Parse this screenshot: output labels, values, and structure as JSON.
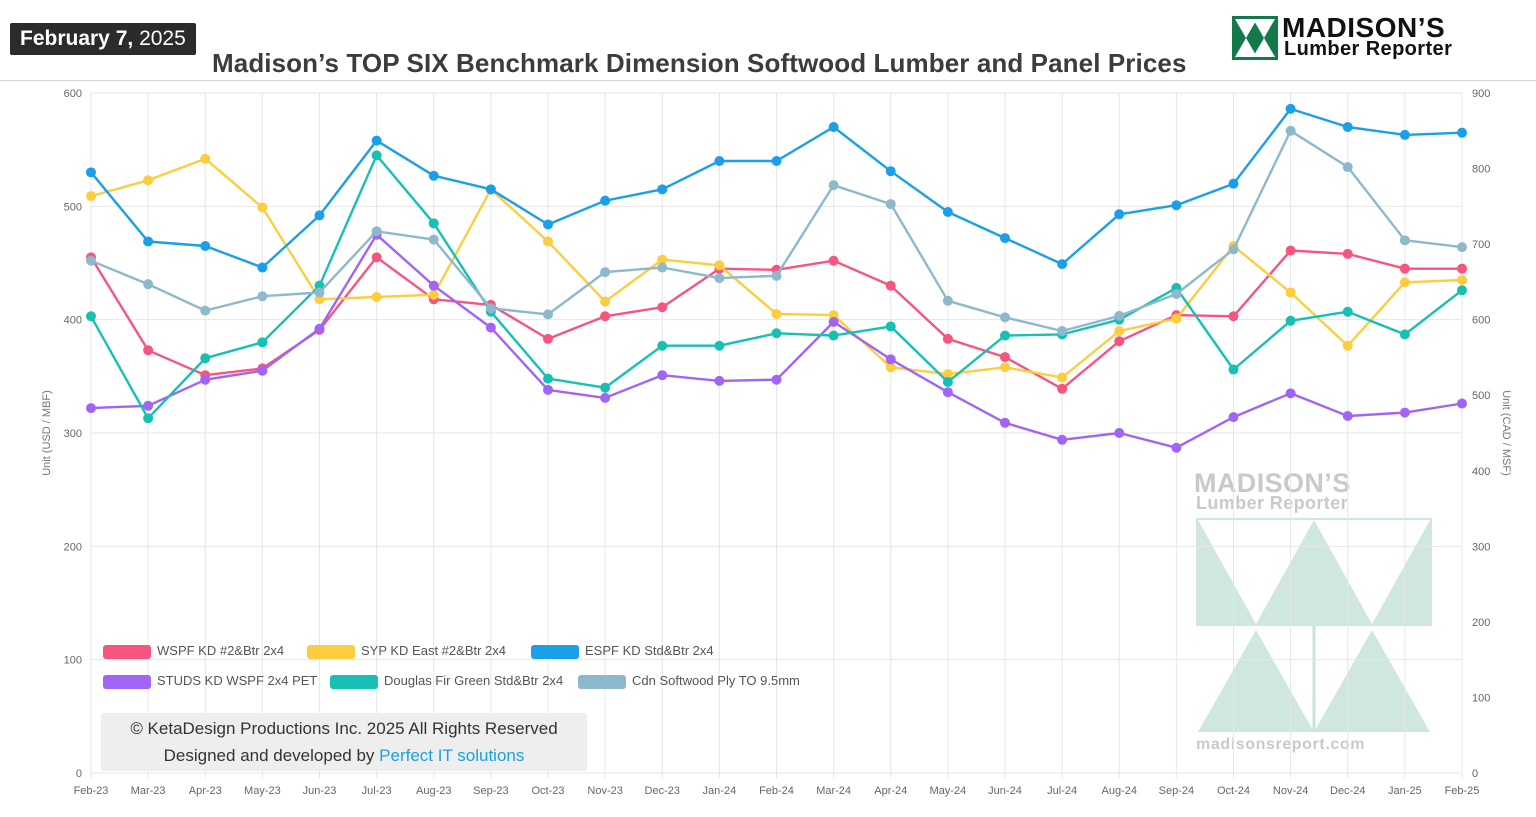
{
  "header": {
    "date_month_day": "February 7,",
    "date_year": "2025",
    "title": "Madison’s TOP SIX Benchmark Dimension Softwood Lumber and Panel Prices",
    "logo_line1": "MADISON’S",
    "logo_line2": "Lumber Reporter"
  },
  "footer": {
    "copyright": "© KetaDesign Productions Inc. 2025 All Rights Reserved",
    "designed_by": "Designed and developed by",
    "designer_link": "Perfect IT solutions"
  },
  "watermark": {
    "line1": "MADISON’S",
    "line2": "Lumber Reporter",
    "url": "madisonsreport.com"
  },
  "colors": {
    "wspf": "#f65580",
    "syp": "#fdcd40",
    "espf": "#1a9fe8",
    "studs": "#a164f5",
    "dfir": "#16c0b3",
    "ply": "#8eb8cc",
    "watermark_green": "#c8e3dc"
  },
  "chart_data": {
    "type": "line",
    "xlabel": "",
    "ylabel": "Unit (USD / MBF)",
    "y2label": "Unit (CAD / MSF)",
    "ylim": [
      0,
      600
    ],
    "y2lim": [
      0,
      900
    ],
    "yticks": [
      "0",
      "100",
      "200",
      "300",
      "400",
      "500",
      "600"
    ],
    "y2ticks": [
      "0",
      "100",
      "200",
      "300",
      "400",
      "500",
      "600",
      "700",
      "800",
      "900"
    ],
    "grid": true,
    "legend_position": "bottom-left",
    "categories": [
      "Feb-23",
      "Mar-23",
      "Apr-23",
      "May-23",
      "Jun-23",
      "Jul-23",
      "Aug-23",
      "Sep-23",
      "Oct-23",
      "Nov-23",
      "Dec-23",
      "Jan-24",
      "Feb-24",
      "Mar-24",
      "Apr-24",
      "May-24",
      "Jun-24",
      "Jul-24",
      "Aug-24",
      "Sep-24",
      "Oct-24",
      "Nov-24",
      "Dec-24",
      "Jan-25",
      "Feb-25"
    ],
    "series": [
      {
        "name": "WSPF KD #2&Btr 2x4",
        "color_key": "wspf",
        "axis": "left",
        "values": [
          455,
          373,
          351,
          357,
          391,
          455,
          418,
          413,
          383,
          403,
          411,
          445,
          444,
          452,
          430,
          383,
          367,
          339,
          381,
          404,
          403,
          461,
          458,
          445,
          445
        ]
      },
      {
        "name": "SYP KD East #2&Btr 2x4",
        "color_key": "syp",
        "axis": "left",
        "values": [
          509,
          523,
          542,
          499,
          418,
          420,
          422,
          515,
          469,
          416,
          453,
          448,
          405,
          404,
          358,
          352,
          358,
          349,
          390,
          401,
          465,
          424,
          377,
          433,
          435
        ]
      },
      {
        "name": "ESPF KD Std&Btr 2x4",
        "color_key": "espf",
        "axis": "left",
        "values": [
          530,
          469,
          465,
          446,
          492,
          558,
          527,
          515,
          484,
          505,
          515,
          540,
          540,
          570,
          531,
          495,
          472,
          449,
          493,
          501,
          520,
          586,
          570,
          563,
          565
        ]
      },
      {
        "name": "STUDS KD WSPF 2x4 PET",
        "color_key": "studs",
        "axis": "left",
        "values": [
          322,
          324,
          347,
          355,
          392,
          475,
          430,
          393,
          338,
          331,
          351,
          346,
          347,
          398,
          365,
          336,
          309,
          294,
          300,
          287,
          314,
          335,
          315,
          318,
          326
        ]
      },
      {
        "name": "Douglas Fir Green Std&Btr 2x4",
        "color_key": "dfir",
        "axis": "left",
        "values": [
          403,
          313,
          366,
          380,
          430,
          545,
          485,
          407,
          348,
          340,
          377,
          377,
          388,
          386,
          394,
          345,
          386,
          387,
          400,
          428,
          356,
          399,
          407,
          387,
          426
        ]
      },
      {
        "name": "Cdn Softwood Ply TO 9.5mm",
        "color_key": "ply",
        "axis": "right",
        "values": [
          678,
          647,
          612,
          631,
          636,
          717,
          706,
          615,
          607,
          663,
          669,
          655,
          658,
          778,
          753,
          625,
          603,
          585,
          605,
          634,
          693,
          850,
          802,
          705,
          696
        ]
      }
    ]
  }
}
